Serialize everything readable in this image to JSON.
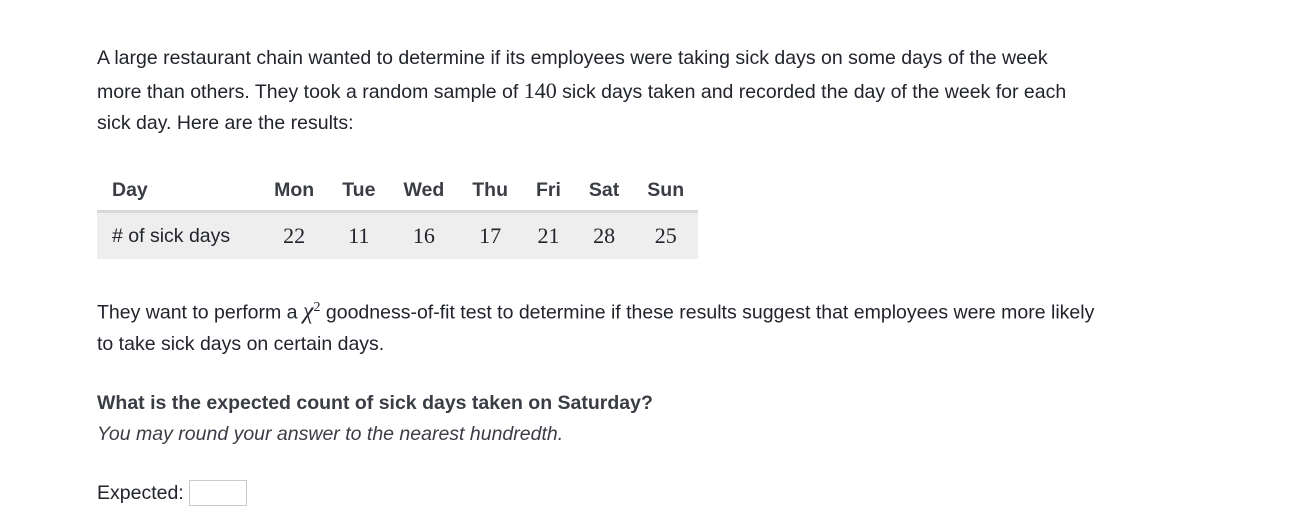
{
  "intro": {
    "before": "A large restaurant chain wanted to determine if its employees were taking sick days on some days of the week more than others. They took a random sample of ",
    "sample_size": "140",
    "after": " sick days taken and recorded the day of the week for each sick day. Here are the results:"
  },
  "table": {
    "header_label": "Day",
    "days": [
      "Mon",
      "Tue",
      "Wed",
      "Thu",
      "Fri",
      "Sat",
      "Sun"
    ],
    "row_label": "# of sick days",
    "counts": [
      "22",
      "11",
      "16",
      "17",
      "21",
      "28",
      "25"
    ]
  },
  "test_text": {
    "before": "They want to perform a ",
    "symbol": "χ",
    "exponent": "2",
    "after": " goodness-of-fit test to determine if these results suggest that employees were more likely to take sick days on certain days."
  },
  "question": "What is the expected count of sick days taken on Saturday?",
  "hint": "You may round your answer to the nearest hundredth.",
  "answer": {
    "label": "Expected:",
    "value": ""
  }
}
